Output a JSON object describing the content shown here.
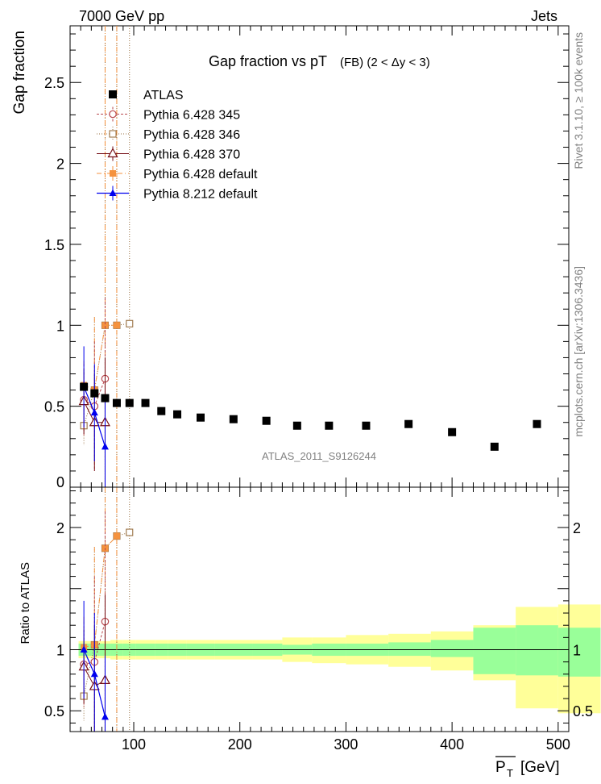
{
  "header": {
    "energy_label": "7000 GeV pp",
    "process_label": "Jets"
  },
  "side_text": {
    "rivet_label": "Rivet 3.1.10, ≥ 100k events",
    "mcplots_label": "mcplots.cern.ch [arXiv:1306.3436]"
  },
  "colors": {
    "atlas": "#000000",
    "p345": "#b8474d",
    "p346": "#9a7243",
    "p370": "#750d14",
    "pdef": "#f5923e",
    "p8": "#0000ee",
    "band_inner": "#99ff99",
    "band_outer": "#ffff99"
  },
  "chart_data": [
    {
      "type": "scatter",
      "title": "Gap fraction vs pT",
      "subtitle": "(FB) (2 < Δy < 3)",
      "ylabel": "Gap fraction",
      "xlabel": "P_T [GeV]",
      "xlim": [
        40,
        510
      ],
      "ylim": [
        0,
        2.85
      ],
      "yticks": [
        {
          "v": 0,
          "label": "0"
        },
        {
          "v": 0.5,
          "label": "0.5"
        },
        {
          "v": 1,
          "label": "1"
        },
        {
          "v": 1.5,
          "label": "1.5"
        },
        {
          "v": 2,
          "label": "2"
        },
        {
          "v": 2.5,
          "label": "2.5"
        }
      ],
      "watermark": "ATLAS_2011_S9126244",
      "legend": [
        {
          "key": "atlas",
          "label": "ATLAS"
        },
        {
          "key": "p345",
          "label": "Pythia 6.428 345"
        },
        {
          "key": "p346",
          "label": "Pythia 6.428 346"
        },
        {
          "key": "p370",
          "label": "Pythia 6.428 370"
        },
        {
          "key": "pdef",
          "label": "Pythia 6.428 default"
        },
        {
          "key": "p8",
          "label": "Pythia 8.212 default"
        }
      ],
      "series": [
        {
          "key": "atlas",
          "name": "ATLAS",
          "x": [
            53,
            63,
            73,
            84,
            96,
            111,
            126,
            141,
            163,
            194,
            225,
            254,
            284,
            319,
            359,
            400,
            440,
            480
          ],
          "y": [
            0.62,
            0.58,
            0.55,
            0.52,
            0.52,
            0.52,
            0.47,
            0.45,
            0.43,
            0.42,
            0.41,
            0.38,
            0.38,
            0.38,
            0.39,
            0.34,
            0.25,
            0.39
          ]
        },
        {
          "key": "p345",
          "name": "Pythia 6.428 345",
          "x": [
            53,
            63,
            73
          ],
          "y": [
            0.54,
            0.5,
            0.67
          ],
          "err": [
            0.22,
            0.4,
            0.5
          ]
        },
        {
          "key": "p346",
          "name": "Pythia 6.428 346",
          "x": [
            53,
            63,
            73,
            84,
            96
          ],
          "y": [
            0.38,
            0.6,
            1.0,
            1.0,
            1.01
          ],
          "err": [
            0.12,
            0.45,
            1.9,
            1.9,
            1.9
          ]
        },
        {
          "key": "p370",
          "name": "Pythia 6.428 370",
          "x": [
            53,
            63,
            73
          ],
          "y": [
            0.53,
            0.4,
            0.4
          ],
          "err": [
            0.2,
            0.3,
            0.4
          ]
        },
        {
          "key": "pdef",
          "name": "Pythia 6.428 default",
          "x": [
            53,
            63,
            73,
            84
          ],
          "y": [
            0.63,
            0.6,
            1.0,
            1.0
          ],
          "err": [
            0.15,
            0.45,
            1.9,
            1.9
          ]
        },
        {
          "key": "p8",
          "name": "Pythia 8.212 default",
          "x": [
            53,
            63,
            73
          ],
          "y": [
            0.62,
            0.46,
            0.25
          ],
          "err": [
            0.25,
            0.3,
            0.3
          ]
        }
      ]
    },
    {
      "type": "scatter",
      "title": "Ratio to ATLAS",
      "ylabel": "Ratio to ATLAS",
      "xlabel": "P_T [GeV]",
      "xlim": [
        40,
        510
      ],
      "ylim": [
        0.33,
        2.33
      ],
      "xticks": [
        {
          "v": 100,
          "label": "100"
        },
        {
          "v": 200,
          "label": "200"
        },
        {
          "v": 300,
          "label": "300"
        },
        {
          "v": 400,
          "label": "400"
        },
        {
          "v": 500,
          "label": "500"
        }
      ],
      "yticks": [
        {
          "v": 0.5,
          "label": "0.5"
        },
        {
          "v": 1,
          "label": "1"
        },
        {
          "v": 2,
          "label": "2"
        }
      ],
      "band_edges": [
        48,
        58,
        68,
        78,
        90,
        102,
        120,
        132,
        150,
        176,
        212,
        240,
        268,
        300,
        340,
        380,
        420,
        460,
        500
      ],
      "band_inner": [
        [
          0.95,
          1.05
        ],
        [
          0.95,
          1.05
        ],
        [
          0.95,
          1.05
        ],
        [
          0.95,
          1.05
        ],
        [
          0.95,
          1.05
        ],
        [
          0.95,
          1.05
        ],
        [
          0.95,
          1.05
        ],
        [
          0.95,
          1.05
        ],
        [
          0.95,
          1.05
        ],
        [
          0.95,
          1.05
        ],
        [
          0.95,
          1.05
        ],
        [
          0.96,
          1.04
        ],
        [
          0.95,
          1.05
        ],
        [
          0.95,
          1.05
        ],
        [
          0.95,
          1.06
        ],
        [
          0.94,
          1.08
        ],
        [
          0.8,
          1.18
        ],
        [
          0.79,
          1.2
        ],
        [
          0.78,
          1.18
        ]
      ],
      "band_outer": [
        [
          0.93,
          1.07
        ],
        [
          0.93,
          1.07
        ],
        [
          0.93,
          1.07
        ],
        [
          0.92,
          1.08
        ],
        [
          0.92,
          1.08
        ],
        [
          0.92,
          1.08
        ],
        [
          0.92,
          1.08
        ],
        [
          0.92,
          1.08
        ],
        [
          0.92,
          1.08
        ],
        [
          0.92,
          1.08
        ],
        [
          0.92,
          1.08
        ],
        [
          0.9,
          1.1
        ],
        [
          0.89,
          1.1
        ],
        [
          0.88,
          1.12
        ],
        [
          0.86,
          1.13
        ],
        [
          0.83,
          1.15
        ],
        [
          0.75,
          1.2
        ],
        [
          0.52,
          1.35
        ],
        [
          0.48,
          1.37
        ]
      ],
      "reference_line": 1,
      "series": [
        {
          "key": "p345",
          "name": "Pythia 6.428 345",
          "x": [
            53,
            63,
            73
          ],
          "y": [
            0.88,
            0.9,
            1.23
          ],
          "err": [
            0.35,
            0.7,
            0.9
          ]
        },
        {
          "key": "p346",
          "name": "Pythia 6.428 346",
          "x": [
            53,
            63,
            73,
            84,
            96
          ],
          "y": [
            0.62,
            1.04,
            1.83,
            1.93,
            1.96
          ],
          "err": [
            0.2,
            0.8,
            3.0,
            3.0,
            3.0
          ]
        },
        {
          "key": "p370",
          "name": "Pythia 6.428 370",
          "x": [
            53,
            63,
            73
          ],
          "y": [
            0.86,
            0.7,
            0.75
          ],
          "err": [
            0.3,
            0.5,
            0.7
          ]
        },
        {
          "key": "pdef",
          "name": "Pythia 6.428 default",
          "x": [
            53,
            63,
            73,
            84
          ],
          "y": [
            1.02,
            1.04,
            1.83,
            1.93
          ],
          "err": [
            0.25,
            0.8,
            3.0,
            3.0
          ]
        },
        {
          "key": "p8",
          "name": "Pythia 8.212 default",
          "x": [
            53,
            63,
            73
          ],
          "y": [
            1.0,
            0.8,
            0.45
          ],
          "err": [
            0.4,
            0.5,
            0.5
          ]
        }
      ]
    }
  ]
}
